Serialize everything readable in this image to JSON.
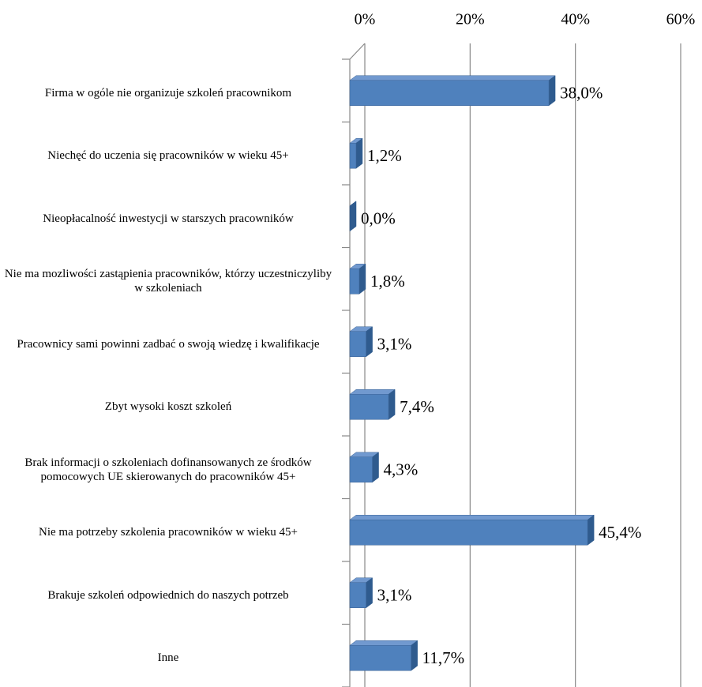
{
  "chart_data": {
    "type": "bar",
    "orientation": "horizontal",
    "categories": [
      "Firma w ogóle nie organizuje szkoleń pracownikom",
      "Niechęć do uczenia się pracowników w wieku 45+",
      "Nieopłacalność inwestycji w starszych pracowników",
      "Nie ma mozliwości zastąpienia pracowników, którzy uczestniczyliby w szkoleniach",
      "Pracownicy sami powinni zadbać o swoją wiedzę i kwalifikacje",
      "Zbyt wysoki koszt szkoleń",
      "Brak informacji o szkoleniach dofinansowanych ze środków pomocowych UE skierowanych do pracowników 45+",
      "Nie ma potrzeby szkolenia pracowników w wieku 45+",
      "Brakuje szkoleń odpowiednich do naszych potrzeb",
      "Inne"
    ],
    "values": [
      38.0,
      1.2,
      0.0,
      1.8,
      3.1,
      7.4,
      4.3,
      45.4,
      3.1,
      11.7
    ],
    "value_labels": [
      "38,0%",
      "1,2%",
      "0,0%",
      "1,8%",
      "3,1%",
      "7,4%",
      "4,3%",
      "45,4%",
      "3,1%",
      "11,7%"
    ],
    "color": "#4f81bd",
    "xlim": [
      0,
      60
    ],
    "xticks": [
      {
        "value": 0,
        "label": "0%"
      },
      {
        "value": 20,
        "label": "20%"
      },
      {
        "value": 40,
        "label": "40%"
      },
      {
        "value": 60,
        "label": "60%"
      }
    ],
    "grid": true
  }
}
